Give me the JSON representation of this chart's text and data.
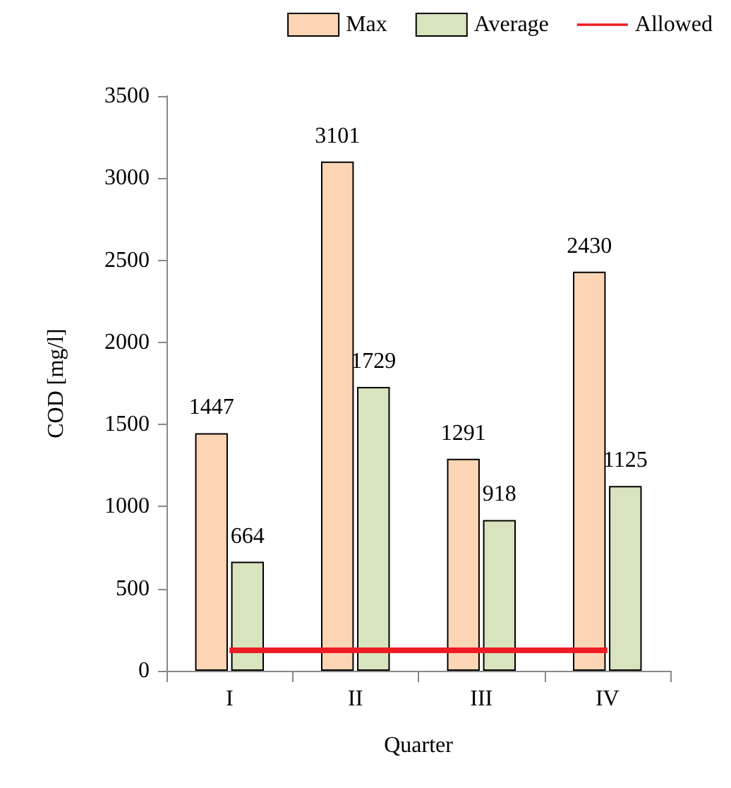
{
  "chart_data": {
    "type": "bar",
    "xlabel": "Quarter",
    "ylabel": "COD [mg/l]",
    "categories": [
      "I",
      "II",
      "III",
      "IV"
    ],
    "series": [
      {
        "name": "Max",
        "color": "#fcd5b5",
        "values": [
          1447,
          3101,
          1291,
          2430
        ],
        "value_labels": [
          "1447",
          "3101",
          "1291",
          "2430"
        ]
      },
      {
        "name": "Average",
        "color": "#d7e4bd",
        "values": [
          664,
          1729,
          918,
          1125
        ],
        "value_labels": [
          "664",
          "1729",
          "918",
          "1125"
        ]
      },
      {
        "name": "Allowed",
        "type": "line",
        "color": "#ee1c25",
        "values": [
          125,
          125,
          125,
          125
        ],
        "marker": "none"
      }
    ],
    "ylim": [
      0,
      3500
    ],
    "yticks": [
      0,
      500,
      1000,
      1500,
      2000,
      2500,
      3000,
      3500
    ],
    "grid": false,
    "legend": "top"
  }
}
